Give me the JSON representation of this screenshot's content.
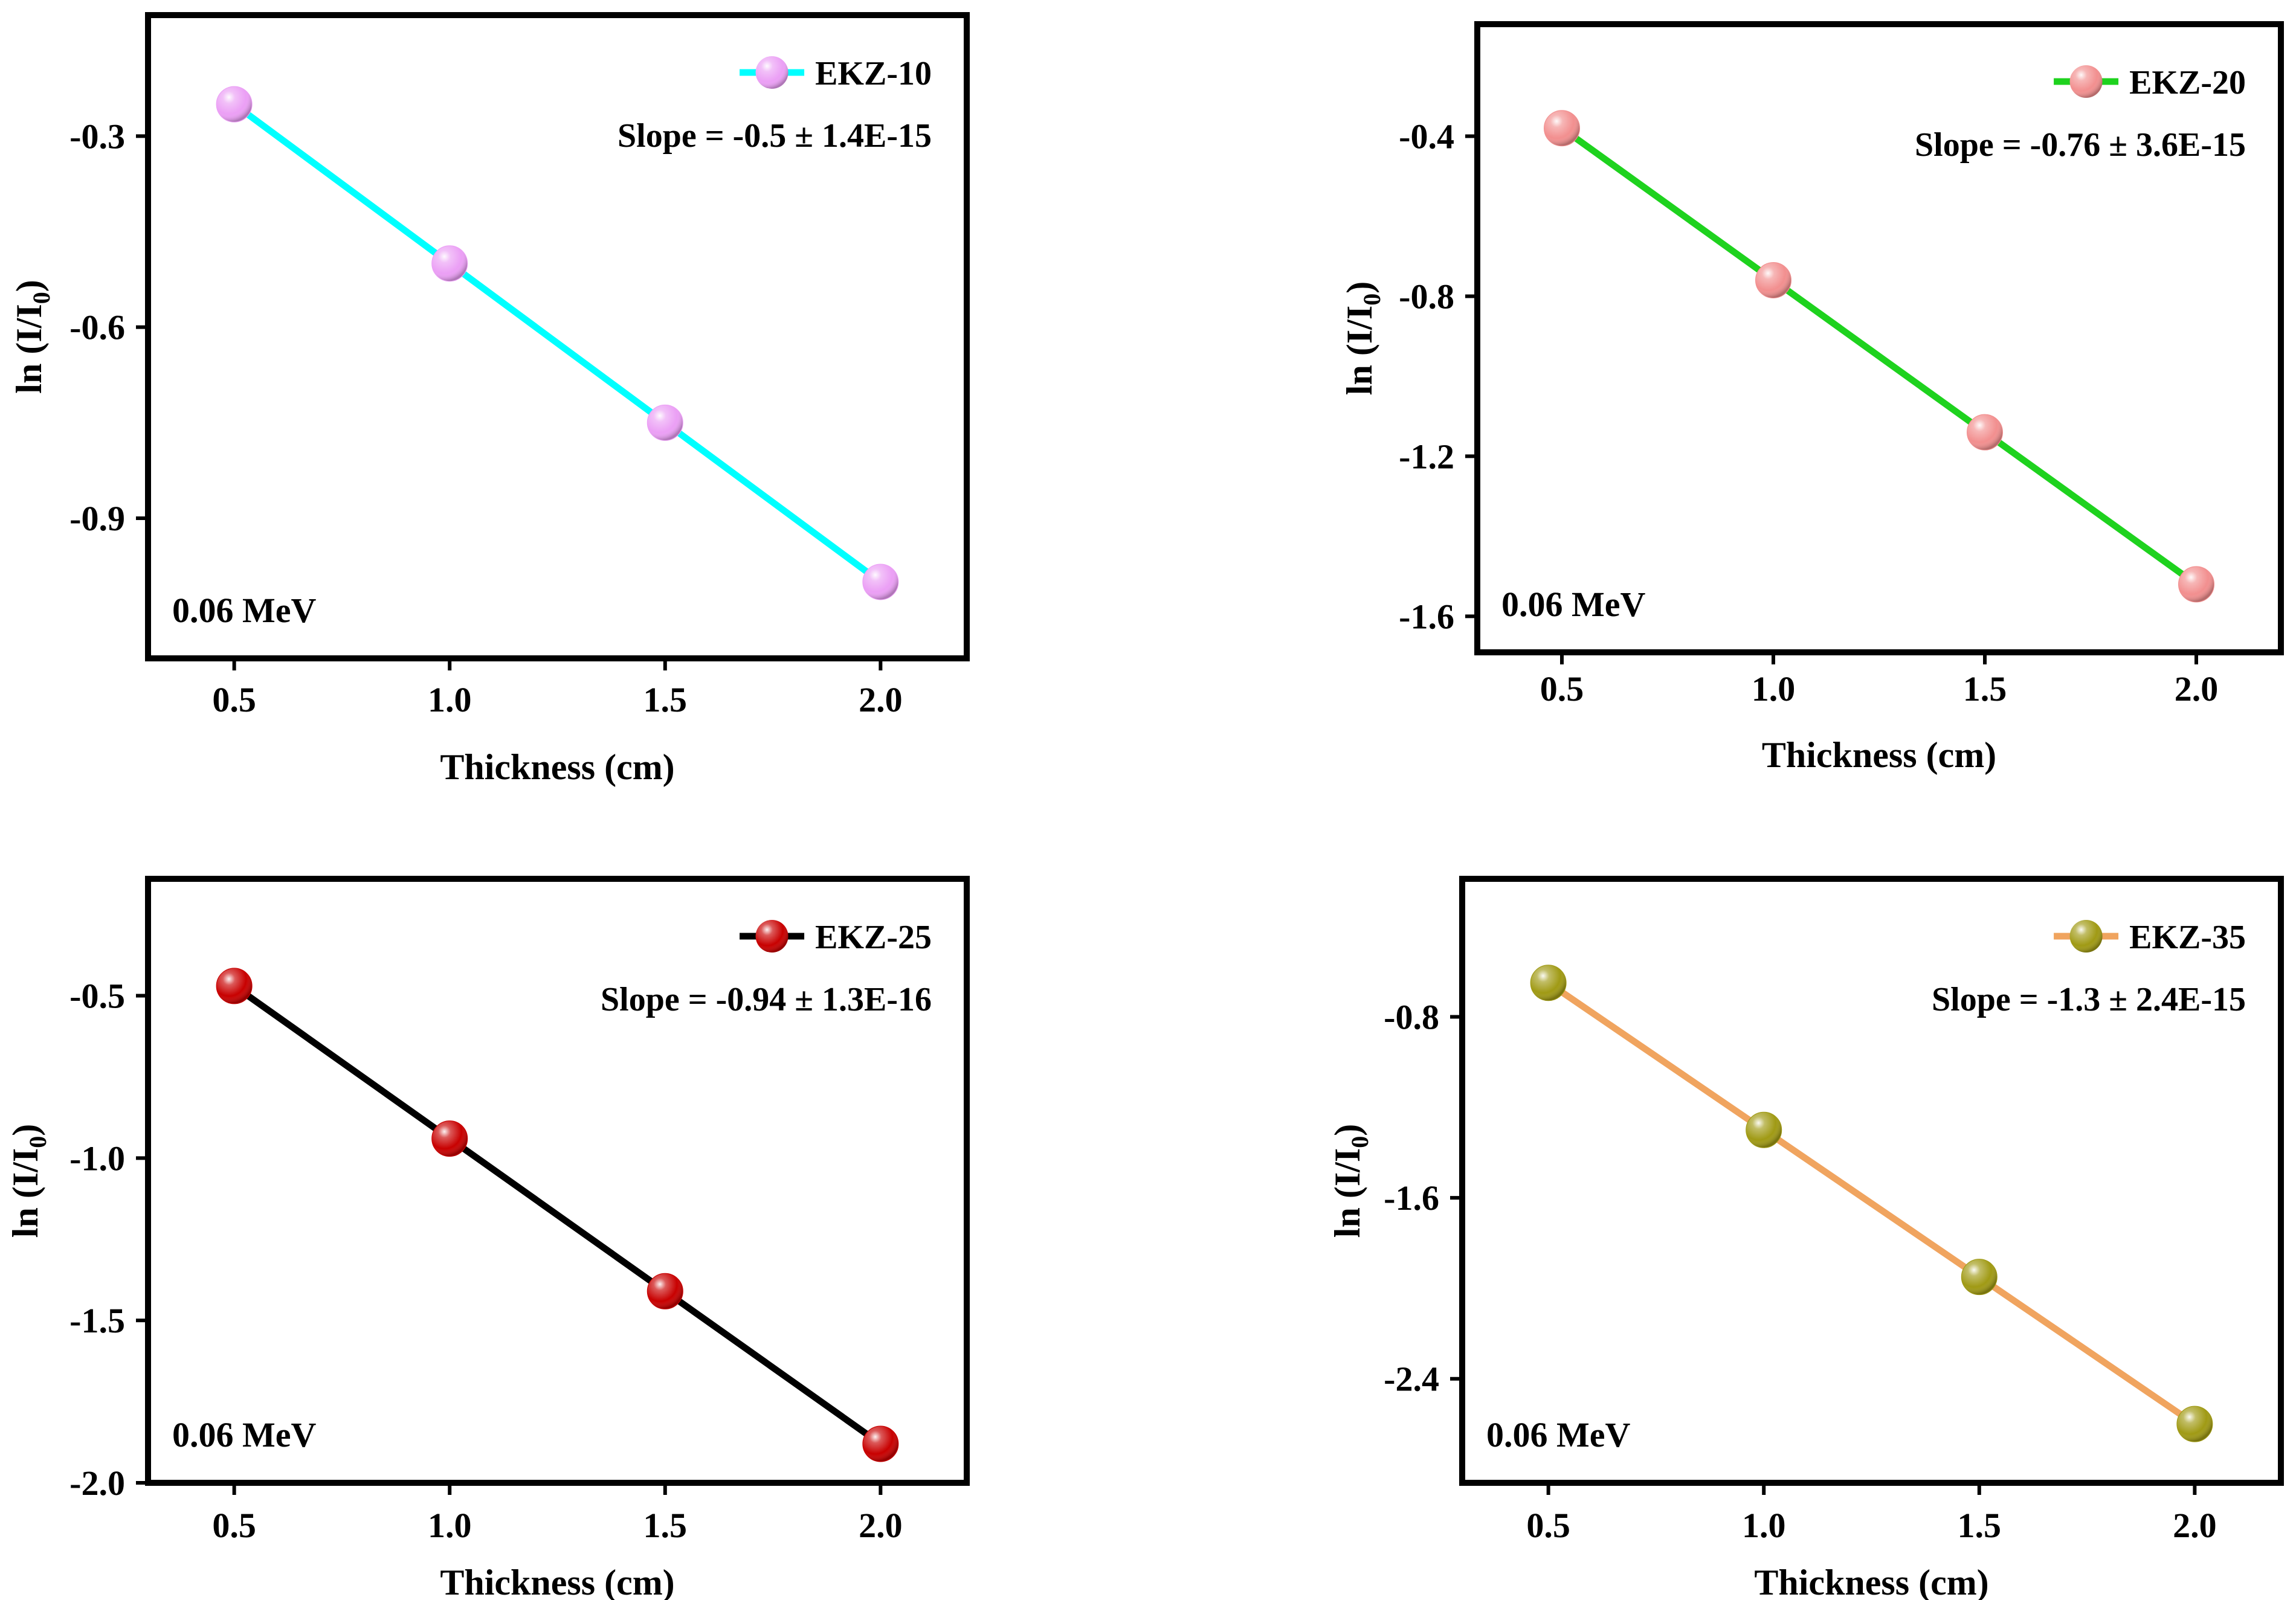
{
  "chart_data": [
    {
      "type": "line",
      "series": [
        {
          "name": "EKZ-10",
          "x": [
            0.5,
            1.0,
            1.5,
            2.0
          ],
          "values": [
            -0.25,
            -0.5,
            -0.75,
            -1.0
          ],
          "line_color": "#00ffff",
          "marker_color": "#eb9ff5"
        }
      ],
      "slope_text": "Slope = -0.5 ± 1.4E-15",
      "energy_label": "0.06 MeV",
      "xlabel": "Thickness (cm)",
      "ylabel_main": "ln (I/I",
      "ylabel_sub": "0",
      "ylabel_close": ")",
      "xticks": [
        "0.5",
        "1.0",
        "1.5",
        "2.0"
      ],
      "xtick_values": [
        0.5,
        1.0,
        1.5,
        2.0
      ],
      "yticks": [
        "-0.3",
        "-0.6",
        "-0.9"
      ],
      "ytick_values": [
        -0.3,
        -0.6,
        -0.9
      ],
      "xlim": [
        0.3,
        2.2
      ],
      "ylim": [
        -1.12,
        -0.11
      ]
    },
    {
      "type": "line",
      "series": [
        {
          "name": "EKZ-20",
          "x": [
            0.5,
            1.0,
            1.5,
            2.0
          ],
          "values": [
            -0.38,
            -0.76,
            -1.14,
            -1.52
          ],
          "line_color": "#1ed21e",
          "marker_color": "#f28f8f"
        }
      ],
      "slope_text": "Slope = -0.76 ± 3.6E-15",
      "energy_label": "0.06 MeV",
      "xlabel": "Thickness (cm)",
      "ylabel_main": "ln (I/I",
      "ylabel_sub": "0",
      "ylabel_close": ")",
      "xticks": [
        "0.5",
        "1.0",
        "1.5",
        "2.0"
      ],
      "xtick_values": [
        0.5,
        1.0,
        1.5,
        2.0
      ],
      "yticks": [
        "-0.4",
        "-0.8",
        "-1.2",
        "-1.6"
      ],
      "ytick_values": [
        -0.4,
        -0.8,
        -1.2,
        -1.6
      ],
      "xlim": [
        0.3,
        2.2
      ],
      "ylim": [
        -1.69,
        -0.12
      ]
    },
    {
      "type": "line",
      "series": [
        {
          "name": "EKZ-25",
          "x": [
            0.5,
            1.0,
            1.5,
            2.0
          ],
          "values": [
            -0.47,
            -0.94,
            -1.41,
            -1.88
          ],
          "line_color": "#000000",
          "marker_color": "#c80000"
        }
      ],
      "slope_text": "Slope = -0.94 ± 1.3E-16",
      "energy_label": "0.06 MeV",
      "xlabel": "Thickness (cm)",
      "ylabel_main": "ln (I/I",
      "ylabel_sub": "0",
      "ylabel_close": ")",
      "xticks": [
        "0.5",
        "1.0",
        "1.5",
        "2.0"
      ],
      "xtick_values": [
        0.5,
        1.0,
        1.5,
        2.0
      ],
      "yticks": [
        "-0.5",
        "-1.0",
        "-1.5",
        "-2.0"
      ],
      "ytick_values": [
        -0.5,
        -1.0,
        -1.5,
        -2.0
      ],
      "xlim": [
        0.3,
        2.2
      ],
      "ylim": [
        -2.0,
        -0.14
      ]
    },
    {
      "type": "line",
      "series": [
        {
          "name": "EKZ-35",
          "x": [
            0.5,
            1.0,
            1.5,
            2.0
          ],
          "values": [
            -0.65,
            -1.3,
            -1.95,
            -2.6
          ],
          "line_color": "#f0a45f",
          "marker_color": "#a09a14"
        }
      ],
      "slope_text": "Slope = -1.3 ± 2.4E-15",
      "energy_label": "0.06 MeV",
      "xlabel": "Thickness (cm)",
      "ylabel_main": "ln (I/I",
      "ylabel_sub": "0",
      "ylabel_close": ")",
      "xticks": [
        "0.5",
        "1.0",
        "1.5",
        "2.0"
      ],
      "xtick_values": [
        0.5,
        1.0,
        1.5,
        2.0
      ],
      "yticks": [
        "-0.8",
        "-1.6",
        "-2.4"
      ],
      "ytick_values": [
        -0.8,
        -1.6,
        -2.4
      ],
      "xlim": [
        0.3,
        2.2
      ],
      "ylim": [
        -2.86,
        -0.19
      ]
    }
  ]
}
